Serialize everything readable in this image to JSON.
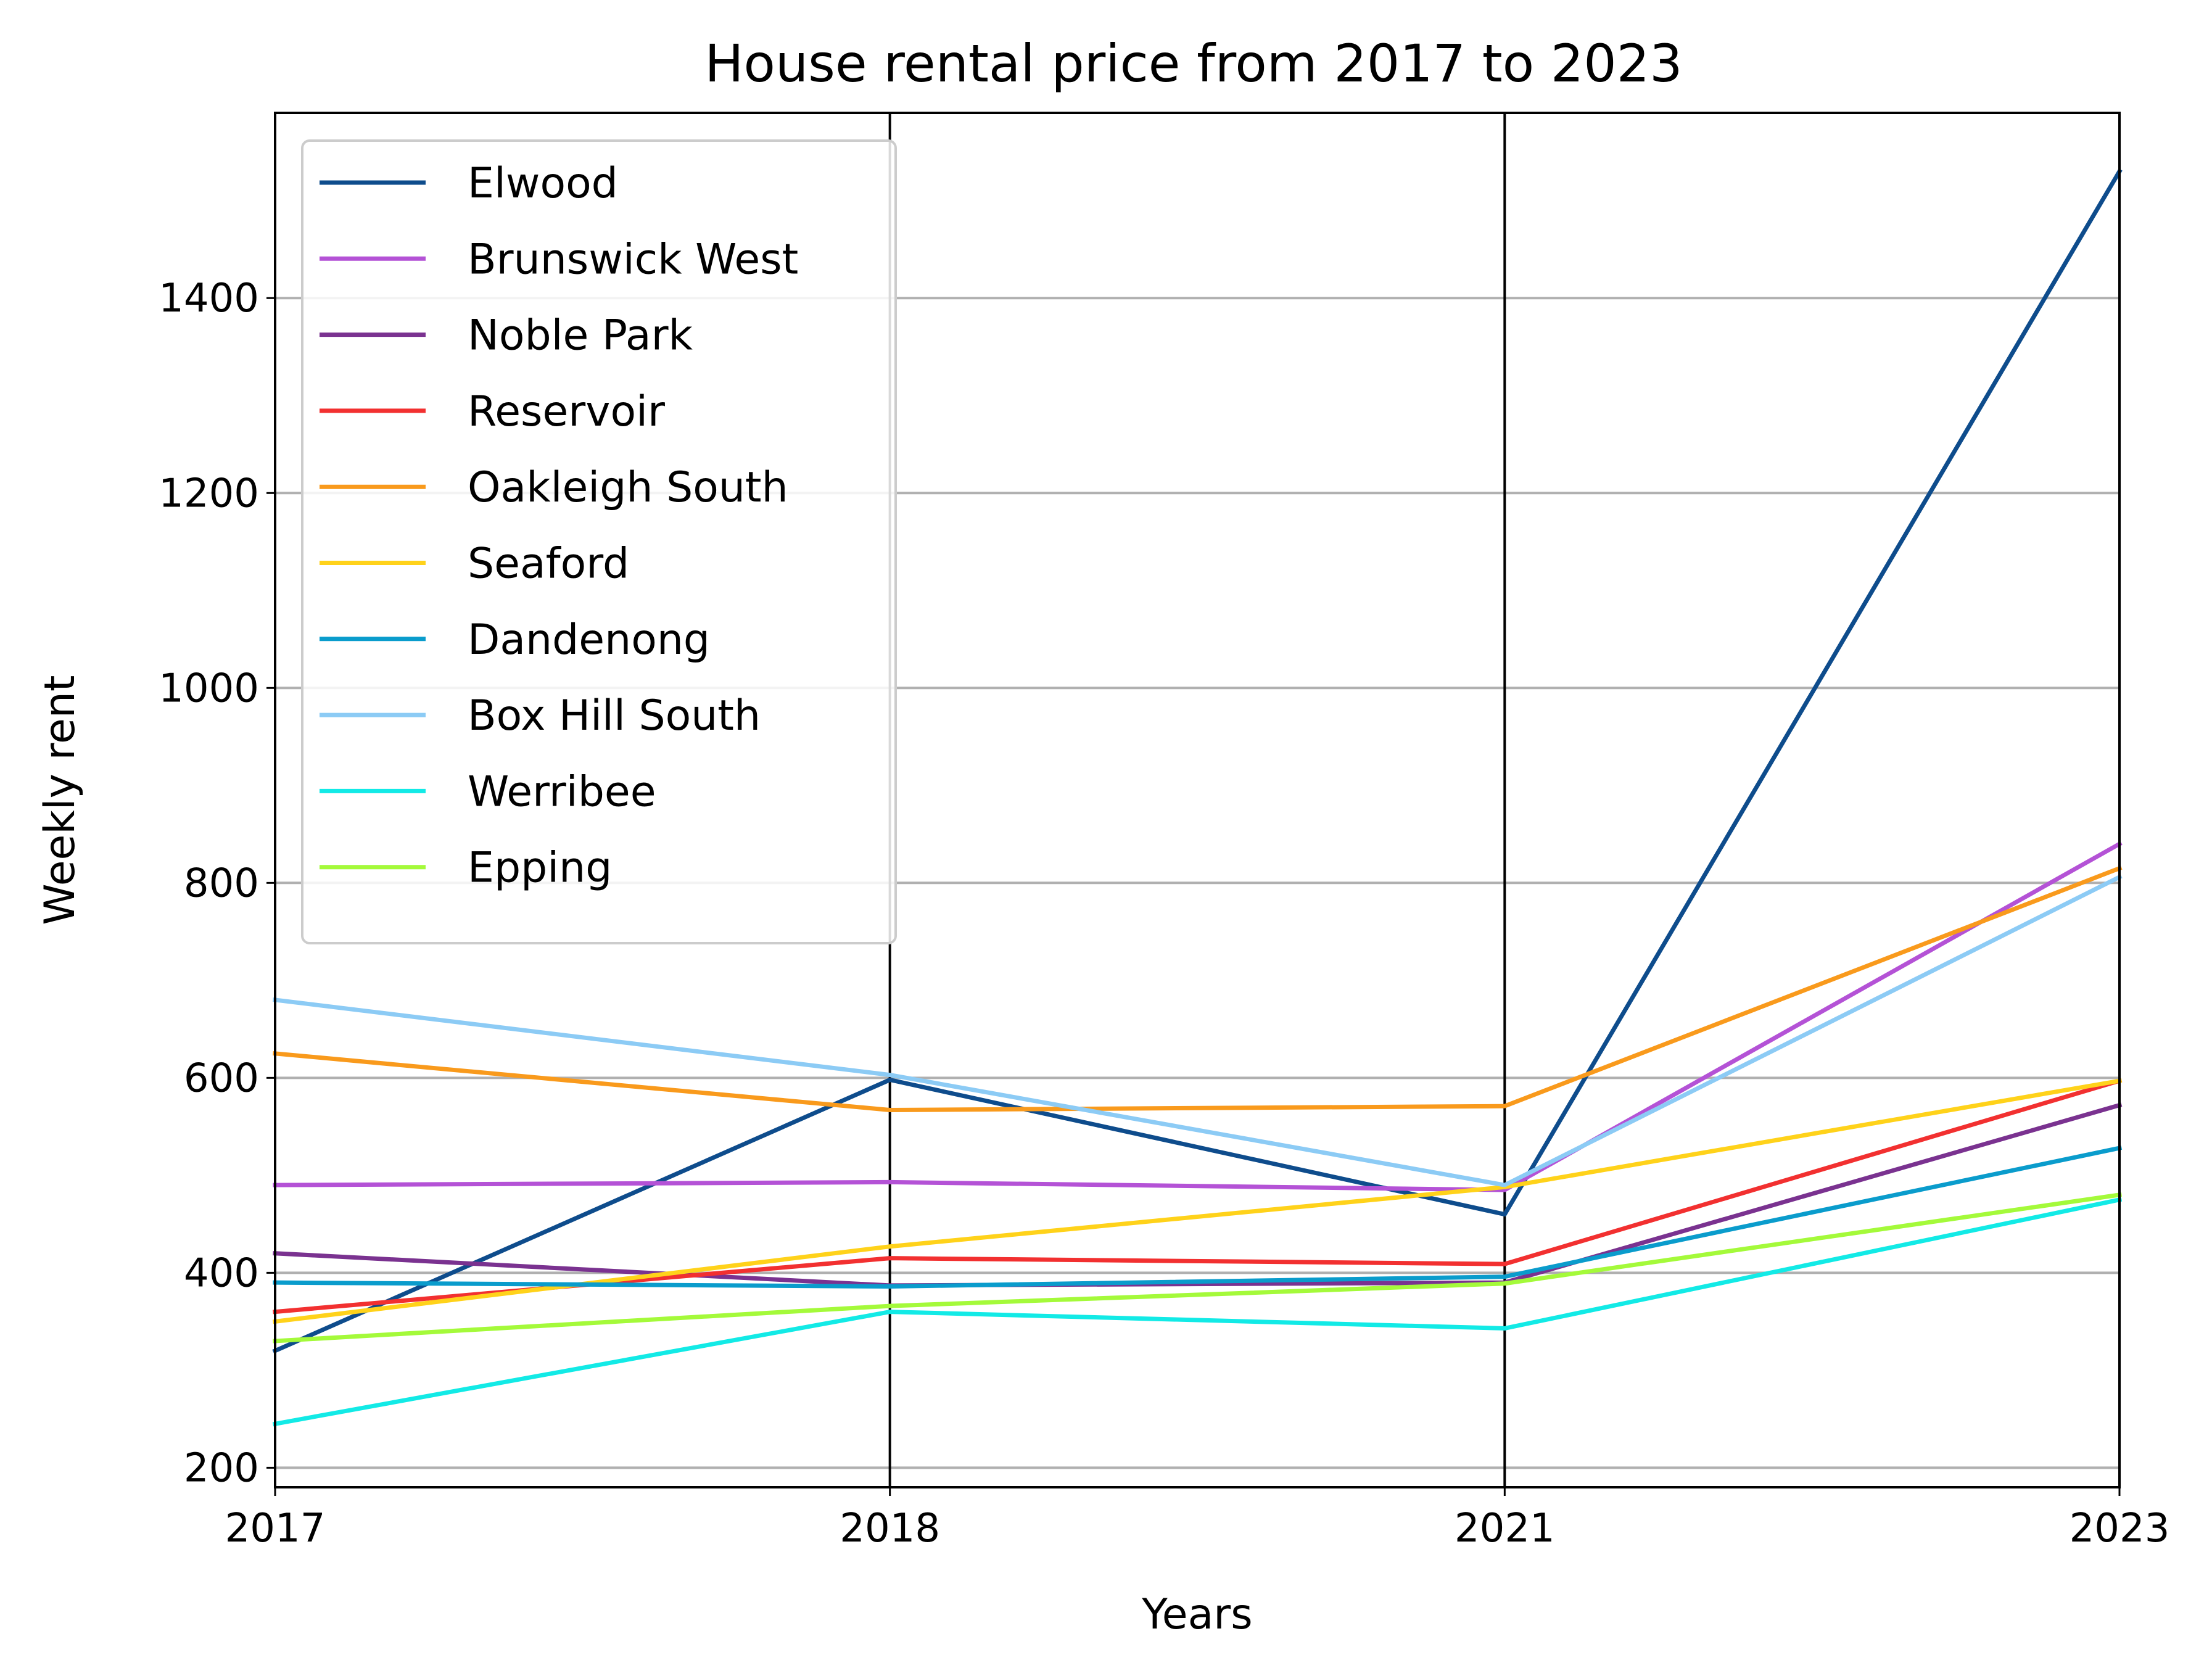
{
  "chart_data": {
    "type": "line",
    "title": "House rental price from 2017 to 2023",
    "xlabel": "Years",
    "ylabel": "Weekly rent",
    "categories": [
      "2017",
      "2018",
      "2021",
      "2023"
    ],
    "ylim": [
      180,
      1590
    ],
    "yticks": [
      200,
      400,
      600,
      800,
      1000,
      1200,
      1400
    ],
    "grid": "horizontal",
    "legend_position": "top-left",
    "series": [
      {
        "name": "Elwood",
        "color": "#0e4c8c",
        "values": [
          320,
          598,
          460,
          1530
        ]
      },
      {
        "name": "Brunswick West",
        "color": "#b452d6",
        "values": [
          490,
          493,
          485,
          840
        ]
      },
      {
        "name": "Noble Park",
        "color": "#7a3290",
        "values": [
          420,
          387,
          390,
          572
        ]
      },
      {
        "name": "Reservoir",
        "color": "#f23030",
        "values": [
          360,
          415,
          409,
          597
        ]
      },
      {
        "name": "Oakleigh South",
        "color": "#f99a1c",
        "values": [
          625,
          567,
          571,
          815
        ]
      },
      {
        "name": "Seaford",
        "color": "#ffd21a",
        "values": [
          350,
          427,
          488,
          597
        ]
      },
      {
        "name": "Dandenong",
        "color": "#0a9ccc",
        "values": [
          390,
          386,
          396,
          528
        ]
      },
      {
        "name": "Box Hill South",
        "color": "#8ccbf5",
        "values": [
          680,
          603,
          490,
          806
        ]
      },
      {
        "name": "Werribee",
        "color": "#12eae6",
        "values": [
          245,
          360,
          343,
          475
        ]
      },
      {
        "name": "Epping",
        "color": "#a4fa3a",
        "values": [
          330,
          366,
          389,
          480
        ]
      }
    ]
  }
}
